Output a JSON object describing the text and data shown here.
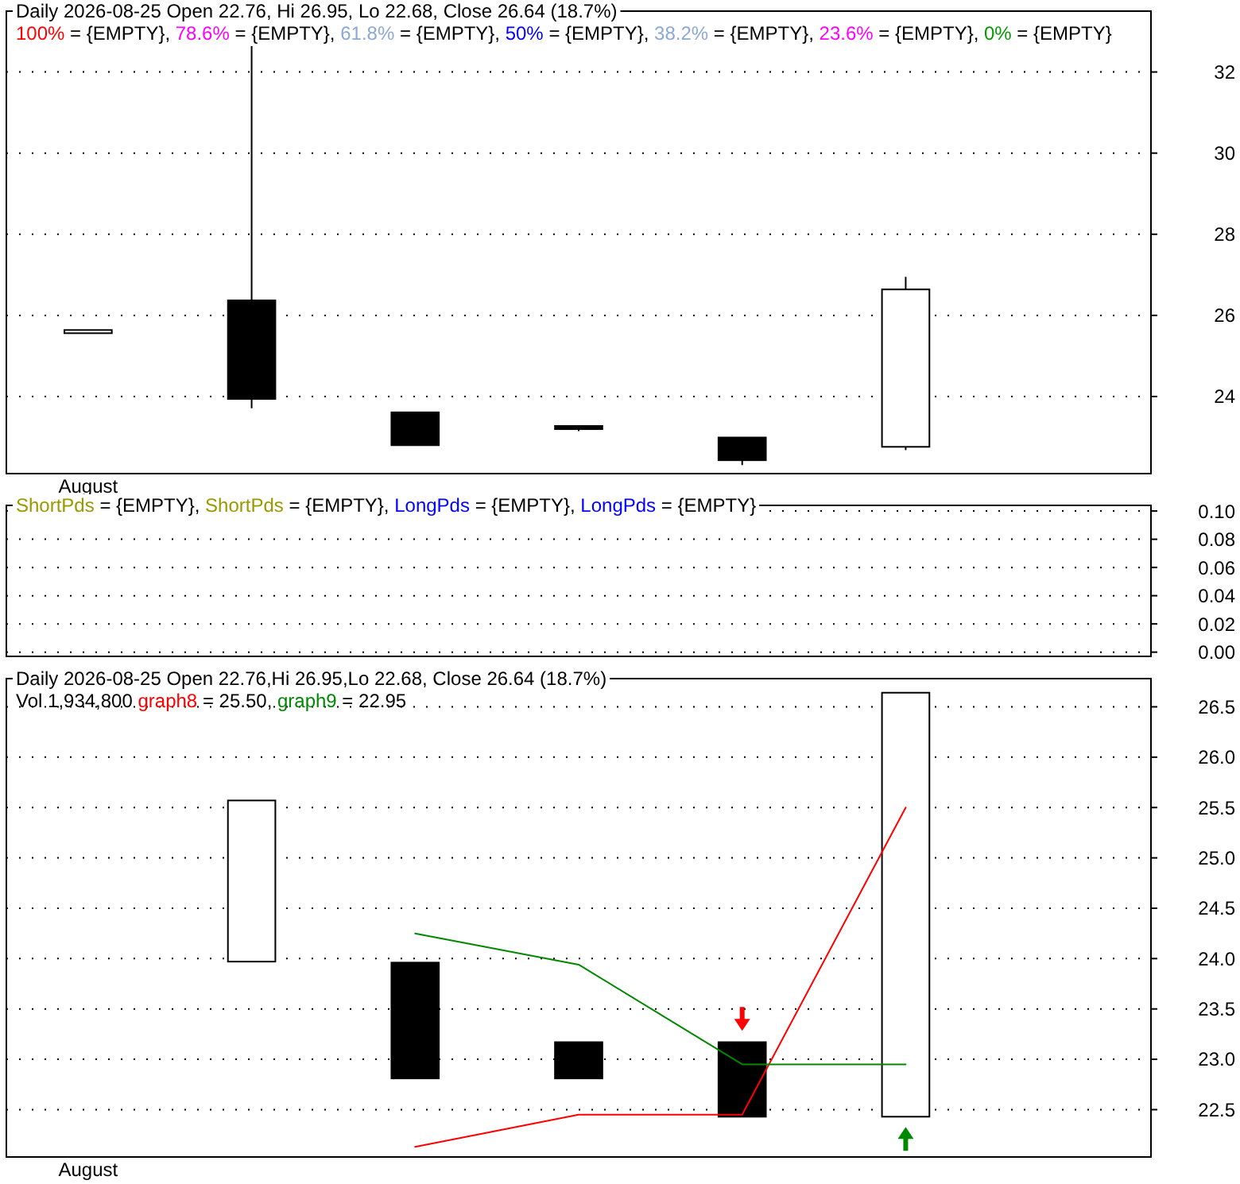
{
  "chart_data": [
    {
      "type": "candlestick",
      "title": "Daily 2026-08-25 Open 22.76, Hi 26.95, Lo 22.68, Close 26.64 (18.7%)",
      "categories": [
        "August",
        null,
        null,
        null,
        null,
        null,
        null
      ],
      "ohlc": [
        [
          25.6,
          25.6,
          25.6,
          25.6
        ],
        [
          26.37,
          32.64,
          23.71,
          23.94
        ],
        [
          23.61,
          23.61,
          22.8,
          22.8
        ],
        [
          23.27,
          23.28,
          23.15,
          23.2
        ],
        [
          22.99,
          22.99,
          22.31,
          22.43
        ],
        [
          22.76,
          26.95,
          22.68,
          26.64
        ],
        null
      ],
      "series": [
        {
          "type": "line",
          "name": "100% = {EMPTY},",
          "color": "#ff0000",
          "values": [
            null,
            null,
            null,
            null,
            null,
            null,
            null
          ]
        },
        {
          "type": "line",
          "name": "78.6% = {EMPTY},",
          "color": "#ff00ff",
          "values": [
            null,
            null,
            null,
            null,
            null,
            null,
            null
          ]
        },
        {
          "type": "line",
          "name": "61.8% = {EMPTY},",
          "color": "#8ca8d4",
          "values": [
            null,
            null,
            null,
            null,
            null,
            null,
            null
          ]
        },
        {
          "type": "line",
          "name": "50% = {EMPTY},",
          "color": "#0000ff",
          "values": [
            null,
            null,
            null,
            null,
            null,
            null,
            null
          ]
        },
        {
          "type": "line",
          "name": "38.2% = {EMPTY},",
          "color": "#8ca8d4",
          "values": [
            null,
            null,
            null,
            null,
            null,
            null,
            null
          ]
        },
        {
          "type": "line",
          "name": "23.6% = {EMPTY},",
          "color": "#ff00ff",
          "values": [
            null,
            null,
            null,
            null,
            null,
            null,
            null
          ]
        },
        {
          "type": "line",
          "name": "0% = {EMPTY}",
          "color": "#009900",
          "values": [
            null,
            null,
            null,
            null,
            null,
            null,
            null
          ]
        }
      ],
      "ylim": [
        22.1,
        33.5
      ],
      "yticks": [
        24,
        26,
        28,
        30,
        32
      ],
      "grid": "y"
    },
    {
      "type": "line",
      "categories": [
        null,
        null,
        null,
        null,
        null,
        null,
        null
      ],
      "series": [
        {
          "name": "ShortPds = {EMPTY},",
          "color": "#999900",
          "values": [
            null,
            null,
            null,
            null,
            null,
            null,
            null
          ]
        },
        {
          "name": "ShortPds = {EMPTY},",
          "color": "#999900",
          "values": [
            null,
            null,
            null,
            null,
            null,
            null,
            null
          ]
        },
        {
          "name": "LongPds = {EMPTY},",
          "color": "#0000ff",
          "values": [
            null,
            null,
            null,
            null,
            null,
            null,
            null
          ]
        },
        {
          "name": "LongPds = {EMPTY}",
          "color": "#0000ff",
          "values": [
            null,
            null,
            null,
            null,
            null,
            null,
            null
          ]
        }
      ],
      "ylim": [
        -0.003,
        0.104
      ],
      "yticks": [
        {
          "value": 0,
          "label": "0.00"
        },
        {
          "value": 0.02,
          "label": "0.02"
        },
        {
          "value": 0.04,
          "label": "0.04"
        },
        {
          "value": 0.06,
          "label": "0.06"
        },
        {
          "value": 0.08,
          "label": "0.08"
        },
        {
          "value": 0.1,
          "label": "0.10"
        }
      ],
      "grid": "y"
    },
    {
      "type": "candlestick",
      "title": "Daily 2026-08-25 Open 22.76,Hi 26.95,Lo 22.68, Close 26.64 (18.7%)",
      "categories": [
        "August",
        null,
        null,
        null,
        null,
        null,
        null
      ],
      "ohlc": [
        null,
        [
          23.97,
          25.57,
          23.97,
          25.57
        ],
        [
          23.96,
          23.96,
          22.81,
          22.81
        ],
        [
          23.17,
          23.17,
          22.81,
          22.81
        ],
        [
          23.17,
          23.17,
          22.43,
          22.43
        ],
        [
          22.43,
          26.64,
          22.43,
          26.64
        ],
        null
      ],
      "series": [
        {
          "type": "line",
          "name": "graph8 = 25.50,",
          "color": "#ff0000",
          "values": [
            null,
            null,
            22.13,
            22.45,
            22.45,
            25.5,
            null
          ]
        },
        {
          "type": "line",
          "name": "graph9 = 22.95",
          "color": "#008800",
          "values": [
            null,
            null,
            24.25,
            23.94,
            22.95,
            22.95,
            null
          ]
        },
        {
          "type": "scatter",
          "color": "#ff0000",
          "marker": "triangle",
          "values": [
            null,
            null,
            null,
            null,
            23.4,
            null,
            null
          ]
        },
        {
          "type": "scatter",
          "color": "#008800",
          "marker": "triangle",
          "values": [
            null,
            null,
            null,
            null,
            null,
            22.21,
            null
          ]
        }
      ],
      "annotations": [
        "Vol 1,934,800"
      ],
      "ylim": [
        22.03,
        26.78
      ],
      "yticks": [
        {
          "value": 22.5,
          "label": "22.5"
        },
        {
          "value": 23,
          "label": "23.0"
        },
        {
          "value": 23.5,
          "label": "23.5"
        },
        {
          "value": 24,
          "label": "24.0"
        },
        {
          "value": 24.5,
          "label": "24.5"
        },
        {
          "value": 25,
          "label": "25.0"
        },
        {
          "value": 25.5,
          "label": "25.5"
        },
        {
          "value": 26,
          "label": "26.0"
        },
        {
          "value": 26.5,
          "label": "26.5"
        }
      ],
      "grid": "y"
    }
  ]
}
